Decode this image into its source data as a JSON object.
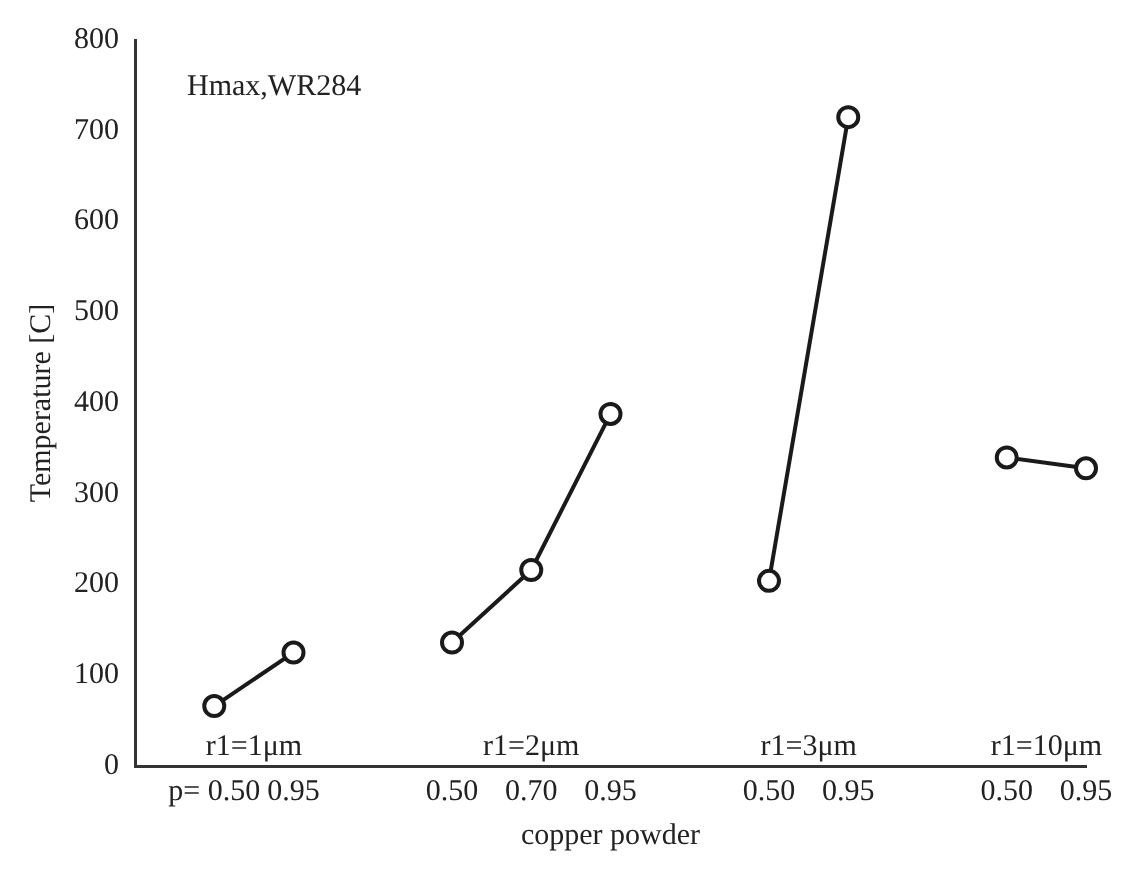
{
  "chart_data": {
    "type": "line",
    "title": "Hmax,WR284",
    "xlabel": "copper powder",
    "ylabel": "Temperature [C]",
    "categories": [
      null,
      "p= 0.50",
      "0.95",
      null,
      "0.50",
      "0.70",
      "0.95",
      null,
      "0.50",
      "0.95",
      null,
      "0.50",
      "0.95"
    ],
    "series": [
      {
        "color": "#1a1a1a",
        "values": [
          null,
          66,
          125,
          null,
          null,
          null,
          null,
          null,
          null,
          null,
          null,
          null,
          null
        ]
      },
      {
        "color": "#1a1a1a",
        "values": [
          null,
          null,
          null,
          null,
          136,
          216,
          388,
          null,
          null,
          null,
          null,
          null,
          null
        ]
      },
      {
        "color": "#1a1a1a",
        "values": [
          null,
          null,
          null,
          null,
          null,
          null,
          null,
          null,
          204,
          715,
          null,
          null,
          null
        ]
      },
      {
        "color": "#1a1a1a",
        "values": [
          null,
          null,
          null,
          null,
          null,
          null,
          null,
          null,
          null,
          null,
          null,
          340,
          328
        ]
      }
    ],
    "annotations": [
      "r1=1μm",
      "r1=2μm",
      "r1=3μm",
      "r1=10μm"
    ],
    "ylim": [
      0,
      800
    ],
    "yticks": [
      0,
      100,
      200,
      300,
      400,
      500,
      600,
      700,
      800
    ],
    "grid": false,
    "legend": false,
    "marker": "circle",
    "line_style": "solid"
  }
}
